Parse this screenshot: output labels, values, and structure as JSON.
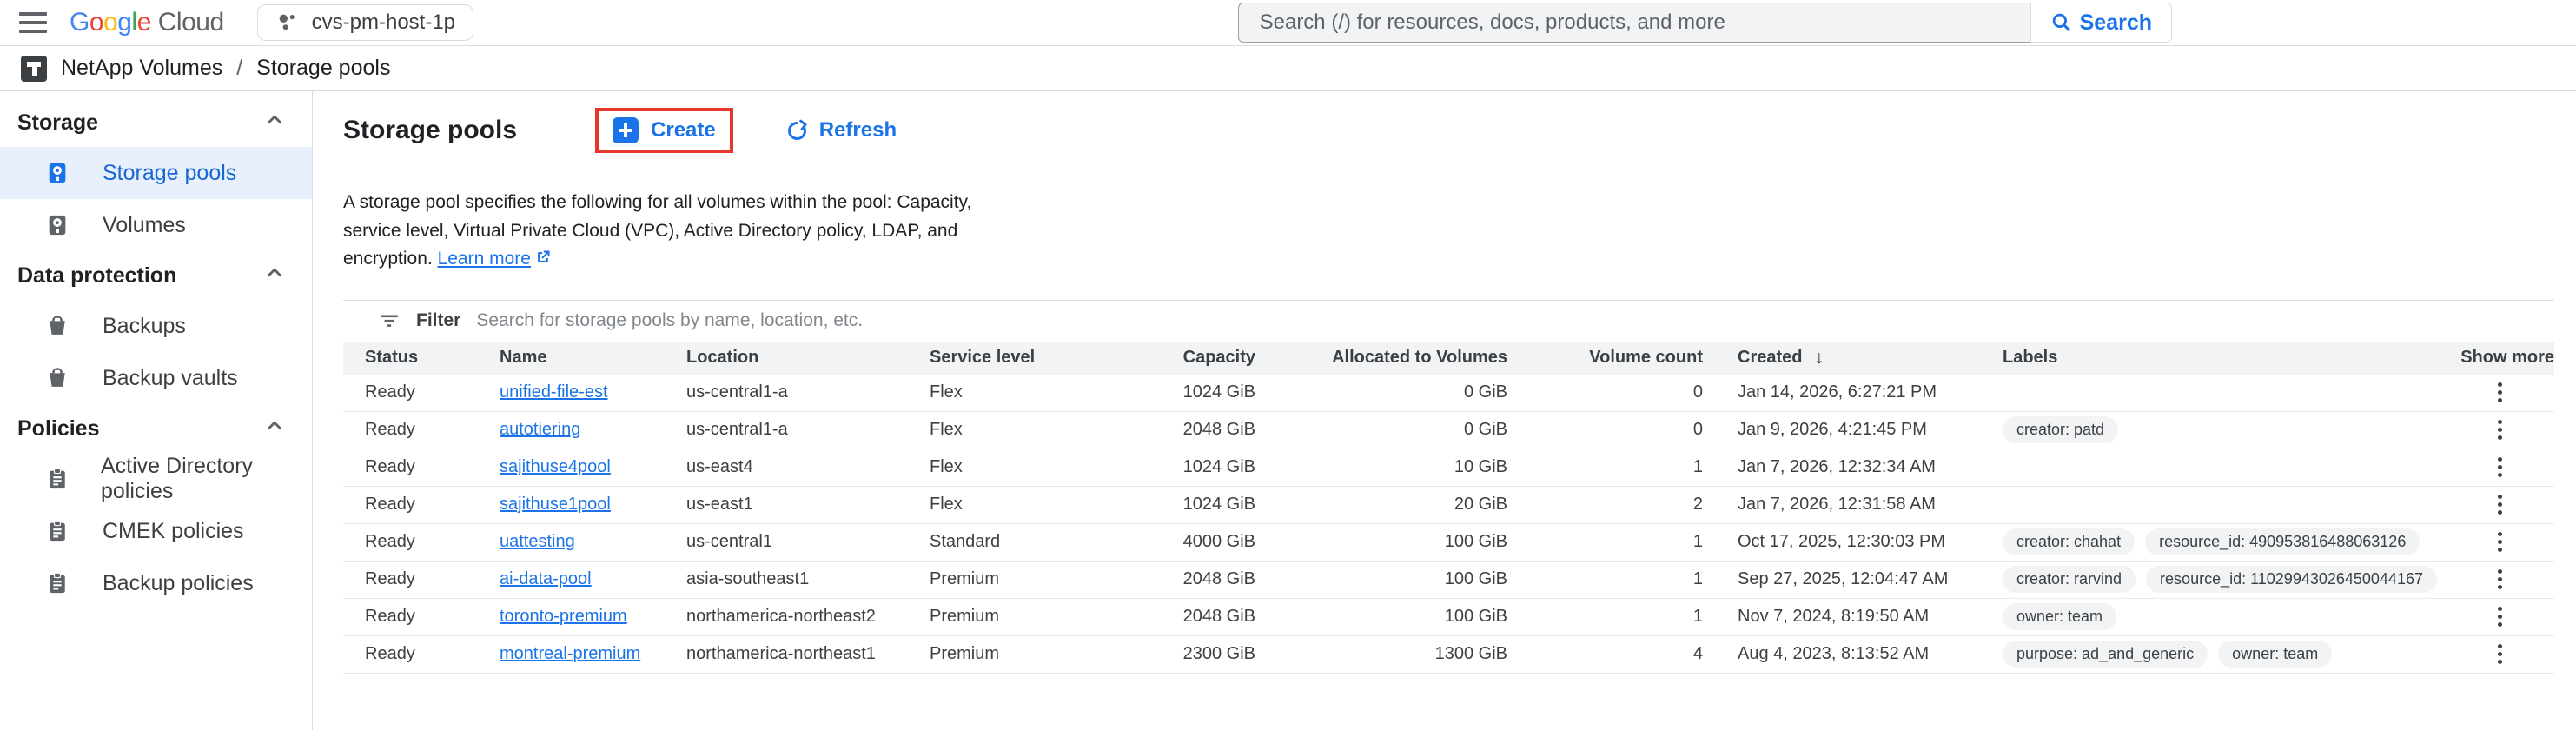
{
  "topbar": {
    "logo": {
      "google": "Google",
      "cloud": "Cloud"
    },
    "project": "cvs-pm-host-1p",
    "search_placeholder": "Search (/) for resources, docs, products, and more",
    "search_button": "Search"
  },
  "breadcrumb": {
    "item1": "NetApp Volumes",
    "separator": "/",
    "item2": "Storage pools"
  },
  "sidebar": {
    "sections": [
      {
        "title": "Storage",
        "items": [
          {
            "label": "Storage pools",
            "icon": "storage-pool",
            "selected": true
          },
          {
            "label": "Volumes",
            "icon": "storage-pool",
            "selected": false
          }
        ]
      },
      {
        "title": "Data protection",
        "items": [
          {
            "label": "Backups",
            "icon": "bucket",
            "selected": false
          },
          {
            "label": "Backup vaults",
            "icon": "bucket",
            "selected": false
          }
        ]
      },
      {
        "title": "Policies",
        "items": [
          {
            "label": "Active Directory policies",
            "icon": "clipboard",
            "selected": false
          },
          {
            "label": "CMEK policies",
            "icon": "clipboard",
            "selected": false
          },
          {
            "label": "Backup policies",
            "icon": "clipboard",
            "selected": false
          }
        ]
      }
    ]
  },
  "main": {
    "title": "Storage pools",
    "create_label": "Create",
    "refresh_label": "Refresh",
    "description": "A storage pool specifies the following for all volumes within the pool: Capacity, service level, Virtual Private Cloud (VPC), Active Directory policy, LDAP, and encryption.",
    "learn_more": "Learn more",
    "filter_label": "Filter",
    "filter_placeholder": "Search for storage pools by name, location, etc.",
    "table": {
      "columns": [
        "Status",
        "Name",
        "Location",
        "Service level",
        "Capacity",
        "Allocated to Volumes",
        "Volume count",
        "Created",
        "Labels",
        "Show more"
      ],
      "sorted_column": "Created",
      "sort_direction": "descending",
      "rows": [
        {
          "status": "Ready",
          "name": "unified-file-est",
          "location": "us-central1-a",
          "service_level": "Flex",
          "capacity": "1024 GiB",
          "allocated": "0 GiB",
          "volume_count": "0",
          "created": "Jan 14, 2026, 6:27:21 PM",
          "labels": []
        },
        {
          "status": "Ready",
          "name": "autotiering",
          "location": "us-central1-a",
          "service_level": "Flex",
          "capacity": "2048 GiB",
          "allocated": "0 GiB",
          "volume_count": "0",
          "created": "Jan 9, 2026, 4:21:45 PM",
          "labels": [
            "creator: patd"
          ]
        },
        {
          "status": "Ready",
          "name": "sajithuse4pool",
          "location": "us-east4",
          "service_level": "Flex",
          "capacity": "1024 GiB",
          "allocated": "10 GiB",
          "volume_count": "1",
          "created": "Jan 7, 2026, 12:32:34 AM",
          "labels": []
        },
        {
          "status": "Ready",
          "name": "sajithuse1pool",
          "location": "us-east1",
          "service_level": "Flex",
          "capacity": "1024 GiB",
          "allocated": "20 GiB",
          "volume_count": "2",
          "created": "Jan 7, 2026, 12:31:58 AM",
          "labels": []
        },
        {
          "status": "Ready",
          "name": "uattesting",
          "location": "us-central1",
          "service_level": "Standard",
          "capacity": "4000 GiB",
          "allocated": "100 GiB",
          "volume_count": "1",
          "created": "Oct 17, 2025, 12:30:03 PM",
          "labels": [
            "creator: chahat",
            "resource_id: 490953816488063126"
          ]
        },
        {
          "status": "Ready",
          "name": "ai-data-pool",
          "location": "asia-southeast1",
          "service_level": "Premium",
          "capacity": "2048 GiB",
          "allocated": "100 GiB",
          "volume_count": "1",
          "created": "Sep 27, 2025, 12:04:47 AM",
          "labels": [
            "creator: rarvind",
            "resource_id: 11029943026450044167"
          ]
        },
        {
          "status": "Ready",
          "name": "toronto-premium",
          "location": "northamerica-northeast2",
          "service_level": "Premium",
          "capacity": "2048 GiB",
          "allocated": "100 GiB",
          "volume_count": "1",
          "created": "Nov 7, 2024, 8:19:50 AM",
          "labels": [
            "owner: team"
          ]
        },
        {
          "status": "Ready",
          "name": "montreal-premium",
          "location": "northamerica-northeast1",
          "service_level": "Premium",
          "capacity": "2300 GiB",
          "allocated": "1300 GiB",
          "volume_count": "4",
          "created": "Aug 4, 2023, 8:13:52 AM",
          "labels": [
            "purpose: ad_and_generic",
            "owner: team"
          ]
        }
      ]
    }
  },
  "colors": {
    "accent": "#1a73e8",
    "selected_text": "#1967d2",
    "selected_bg": "#e8f0fe",
    "annotation": "#e8362d",
    "header_bg": "#f1f3f4"
  }
}
